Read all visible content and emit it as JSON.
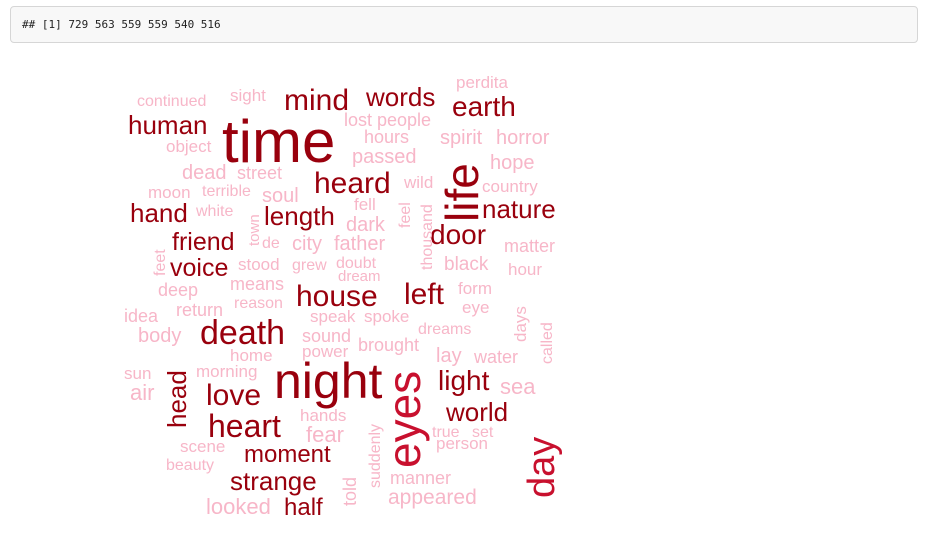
{
  "console": {
    "output_line": "## [1] 729 563 559 559 540 516"
  },
  "colors": {
    "strong": "#99000d",
    "mid": "#c8102e",
    "light": "#f7b6c8"
  },
  "wordcloud": {
    "words": [
      {
        "text": "time",
        "tone": "strong"
      },
      {
        "text": "night",
        "tone": "strong"
      },
      {
        "text": "life",
        "tone": "strong"
      },
      {
        "text": "eyes",
        "tone": "mid"
      },
      {
        "text": "day",
        "tone": "mid"
      },
      {
        "text": "death",
        "tone": "strong"
      },
      {
        "text": "house",
        "tone": "strong"
      },
      {
        "text": "heart",
        "tone": "strong"
      },
      {
        "text": "mind",
        "tone": "strong"
      },
      {
        "text": "heard",
        "tone": "strong"
      },
      {
        "text": "left",
        "tone": "strong"
      },
      {
        "text": "love",
        "tone": "strong"
      },
      {
        "text": "words",
        "tone": "strong"
      },
      {
        "text": "earth",
        "tone": "strong"
      },
      {
        "text": "door",
        "tone": "strong"
      },
      {
        "text": "light",
        "tone": "strong"
      },
      {
        "text": "world",
        "tone": "strong"
      },
      {
        "text": "nature",
        "tone": "strong"
      },
      {
        "text": "human",
        "tone": "strong"
      },
      {
        "text": "hand",
        "tone": "strong"
      },
      {
        "text": "length",
        "tone": "strong"
      },
      {
        "text": "friend",
        "tone": "strong"
      },
      {
        "text": "voice",
        "tone": "strong"
      },
      {
        "text": "head",
        "tone": "strong"
      },
      {
        "text": "moment",
        "tone": "strong"
      },
      {
        "text": "strange",
        "tone": "strong"
      },
      {
        "text": "half",
        "tone": "strong"
      },
      {
        "text": "continued",
        "tone": "light"
      },
      {
        "text": "sight",
        "tone": "light"
      },
      {
        "text": "perdita",
        "tone": "light"
      },
      {
        "text": "lost",
        "tone": "light"
      },
      {
        "text": "people",
        "tone": "light"
      },
      {
        "text": "hours",
        "tone": "light"
      },
      {
        "text": "spirit",
        "tone": "light"
      },
      {
        "text": "horror",
        "tone": "light"
      },
      {
        "text": "object",
        "tone": "light"
      },
      {
        "text": "passed",
        "tone": "light"
      },
      {
        "text": "hope",
        "tone": "light"
      },
      {
        "text": "dead",
        "tone": "light"
      },
      {
        "text": "street",
        "tone": "light"
      },
      {
        "text": "moon",
        "tone": "light"
      },
      {
        "text": "terrible",
        "tone": "light"
      },
      {
        "text": "soul",
        "tone": "light"
      },
      {
        "text": "wild",
        "tone": "light"
      },
      {
        "text": "country",
        "tone": "light"
      },
      {
        "text": "white",
        "tone": "light"
      },
      {
        "text": "fell",
        "tone": "light"
      },
      {
        "text": "dark",
        "tone": "light"
      },
      {
        "text": "feel",
        "tone": "light"
      },
      {
        "text": "thousand",
        "tone": "light"
      },
      {
        "text": "town",
        "tone": "light"
      },
      {
        "text": "de",
        "tone": "light"
      },
      {
        "text": "city",
        "tone": "light"
      },
      {
        "text": "father",
        "tone": "light"
      },
      {
        "text": "matter",
        "tone": "light"
      },
      {
        "text": "feet",
        "tone": "light"
      },
      {
        "text": "stood",
        "tone": "light"
      },
      {
        "text": "grew",
        "tone": "light"
      },
      {
        "text": "doubt",
        "tone": "light"
      },
      {
        "text": "black",
        "tone": "light"
      },
      {
        "text": "dream",
        "tone": "light"
      },
      {
        "text": "hour",
        "tone": "light"
      },
      {
        "text": "means",
        "tone": "light"
      },
      {
        "text": "deep",
        "tone": "light"
      },
      {
        "text": "form",
        "tone": "light"
      },
      {
        "text": "reason",
        "tone": "light"
      },
      {
        "text": "return",
        "tone": "light"
      },
      {
        "text": "eye",
        "tone": "light"
      },
      {
        "text": "days",
        "tone": "light"
      },
      {
        "text": "idea",
        "tone": "light"
      },
      {
        "text": "speak",
        "tone": "light"
      },
      {
        "text": "spoke",
        "tone": "light"
      },
      {
        "text": "dreams",
        "tone": "light"
      },
      {
        "text": "called",
        "tone": "light"
      },
      {
        "text": "body",
        "tone": "light"
      },
      {
        "text": "sound",
        "tone": "light"
      },
      {
        "text": "brought",
        "tone": "light"
      },
      {
        "text": "home",
        "tone": "light"
      },
      {
        "text": "power",
        "tone": "light"
      },
      {
        "text": "lay",
        "tone": "light"
      },
      {
        "text": "water",
        "tone": "light"
      },
      {
        "text": "sun",
        "tone": "light"
      },
      {
        "text": "morning",
        "tone": "light"
      },
      {
        "text": "air",
        "tone": "light"
      },
      {
        "text": "sea",
        "tone": "light"
      },
      {
        "text": "hands",
        "tone": "light"
      },
      {
        "text": "fear",
        "tone": "light"
      },
      {
        "text": "true",
        "tone": "light"
      },
      {
        "text": "set",
        "tone": "light"
      },
      {
        "text": "suddenly",
        "tone": "light"
      },
      {
        "text": "scene",
        "tone": "light"
      },
      {
        "text": "person",
        "tone": "light"
      },
      {
        "text": "beauty",
        "tone": "light"
      },
      {
        "text": "told",
        "tone": "light"
      },
      {
        "text": "manner",
        "tone": "light"
      },
      {
        "text": "appeared",
        "tone": "light"
      },
      {
        "text": "looked",
        "tone": "light"
      }
    ]
  }
}
